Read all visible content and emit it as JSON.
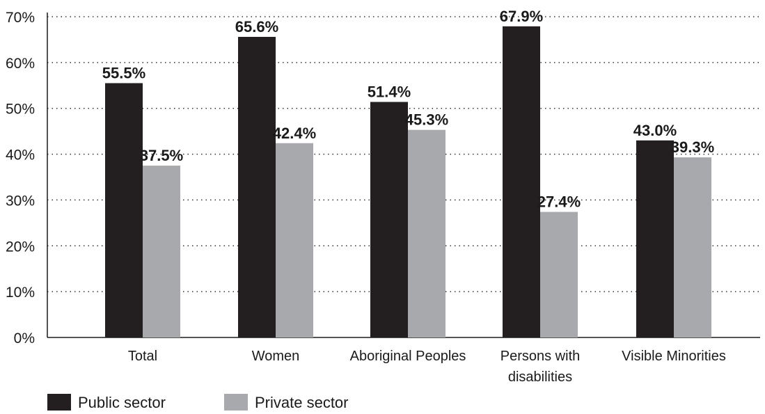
{
  "chart_data": {
    "type": "bar",
    "categories": [
      [
        "Total"
      ],
      [
        "Women"
      ],
      [
        "Aboriginal Peoples"
      ],
      [
        "Persons with",
        "disabilities"
      ],
      [
        "Visible Minorities"
      ]
    ],
    "series": [
      {
        "name": "Public sector",
        "color": "#231f20",
        "values": [
          55.5,
          65.6,
          51.4,
          67.9,
          43.0
        ],
        "labels": [
          "55.5%",
          "65.6%",
          "51.4%",
          "67.9%",
          "43.0%"
        ]
      },
      {
        "name": "Private sector",
        "color": "#a7a9ac",
        "values": [
          37.5,
          42.4,
          45.3,
          27.4,
          39.3
        ],
        "labels": [
          "37.5%",
          "42.4%",
          "45.3%",
          "27.4%",
          "39.3%"
        ]
      }
    ],
    "ylim": [
      0,
      70
    ],
    "yticks": [
      {
        "value": 0,
        "label": "0%"
      },
      {
        "value": 10,
        "label": "10%"
      },
      {
        "value": 20,
        "label": "20%"
      },
      {
        "value": 30,
        "label": "30%"
      },
      {
        "value": 40,
        "label": "40%"
      },
      {
        "value": 50,
        "label": "50%"
      },
      {
        "value": 60,
        "label": "60%"
      },
      {
        "value": 70,
        "label": "70%"
      }
    ],
    "grid": "dotted",
    "legend_position": "bottom-left",
    "title": "",
    "xlabel": "",
    "ylabel": ""
  }
}
